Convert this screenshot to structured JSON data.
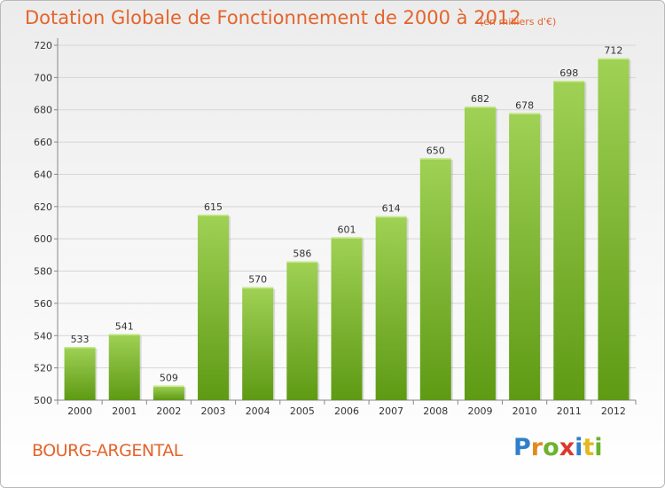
{
  "header": {
    "title": "Dotation Globale de Fonctionnement de 2000 à 2012",
    "subtitle": "(en milliers d'€)"
  },
  "footer": {
    "commune": "BOURG-ARGENTAL",
    "logo": [
      "P",
      "r",
      "o",
      "x",
      "i",
      "t",
      "i"
    ]
  },
  "colors": {
    "title": "#e4642a",
    "bar_top": "#9fd155",
    "bar_bottom": "#5e9a14",
    "grid": "#d5d5d5"
  },
  "chart_data": {
    "type": "bar",
    "title": "Dotation Globale de Fonctionnement de 2000 à 2012",
    "subtitle": "(en milliers d'€)",
    "categories": [
      "2000",
      "2001",
      "2002",
      "2003",
      "2004",
      "2005",
      "2006",
      "2007",
      "2008",
      "2009",
      "2010",
      "2011",
      "2012"
    ],
    "values": [
      533,
      541,
      509,
      615,
      570,
      586,
      601,
      614,
      650,
      682,
      678,
      698,
      712
    ],
    "ylim": [
      500,
      720
    ],
    "yticks": [
      500,
      520,
      540,
      560,
      580,
      600,
      620,
      640,
      660,
      680,
      700,
      720
    ],
    "grid": true,
    "data_labels": true
  }
}
